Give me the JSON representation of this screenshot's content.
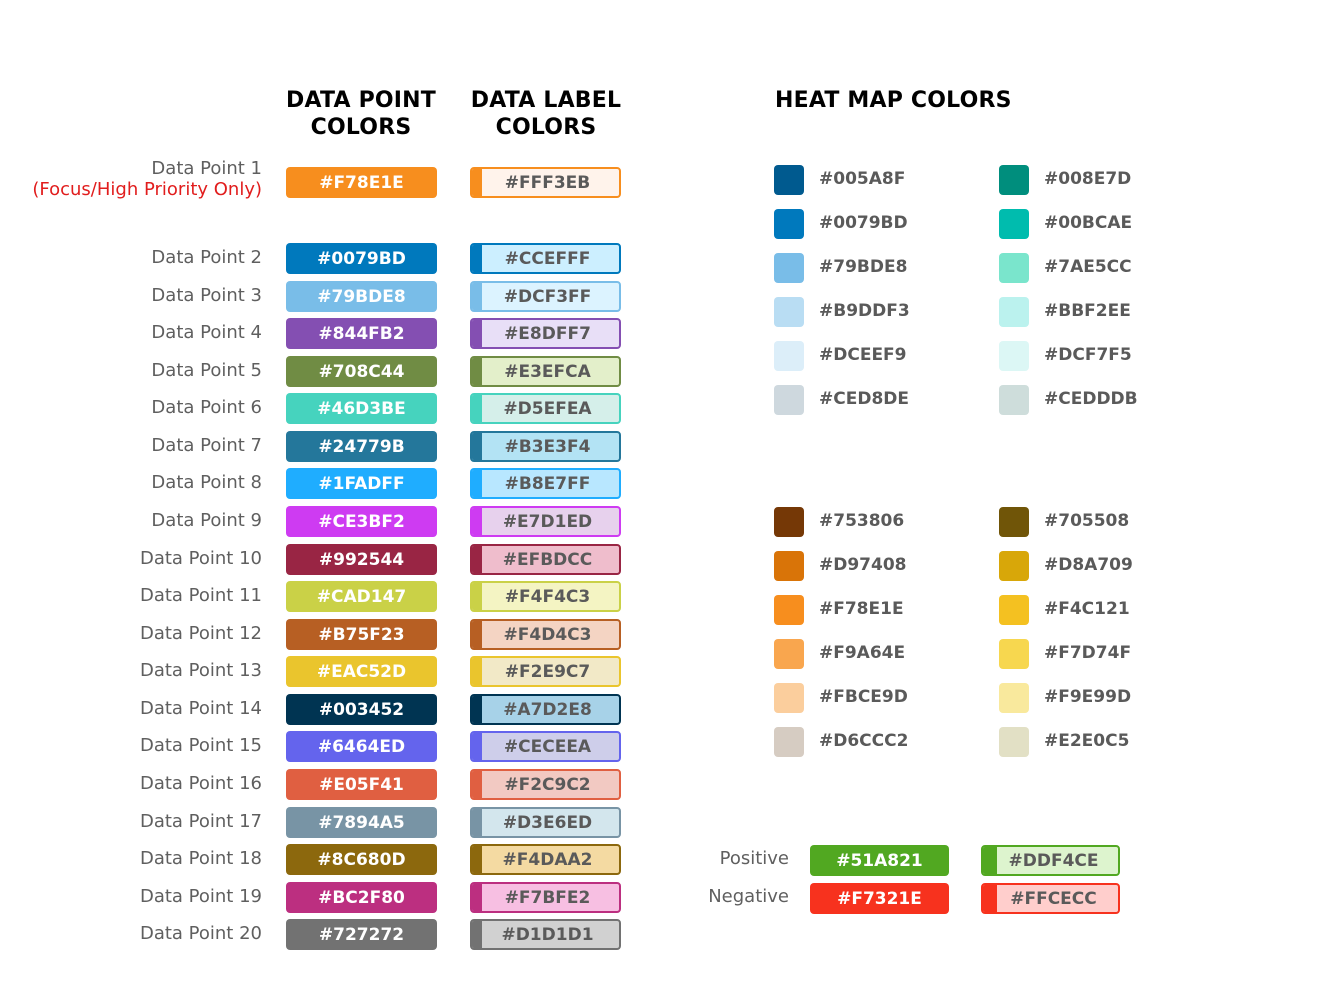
{
  "headings": {
    "data_point": [
      "DATA POINT",
      "COLORS"
    ],
    "data_label": [
      "DATA LABEL",
      "COLORS"
    ],
    "heat_map": "HEAT MAP COLORS"
  },
  "data_points": [
    {
      "label": "Data Point 1",
      "sublabel": "(Focus/High Priority Only)",
      "point": "#F78E1E",
      "label_color": "#FFF3EB"
    },
    {
      "label": "Data Point 2",
      "point": "#0079BD",
      "label_color": "#CCEFFF"
    },
    {
      "label": "Data Point 3",
      "point": "#79BDE8",
      "label_color": "#DCF3FF"
    },
    {
      "label": "Data Point 4",
      "point": "#844FB2",
      "label_color": "#E8DFF7"
    },
    {
      "label": "Data Point 5",
      "point": "#708C44",
      "label_color": "#E3EFCA"
    },
    {
      "label": "Data Point 6",
      "point": "#46D3BE",
      "label_color": "#D5EFEA"
    },
    {
      "label": "Data Point 7",
      "point": "#24779B",
      "label_color": "#B3E3F4"
    },
    {
      "label": "Data Point 8",
      "point": "#1FADFF",
      "label_color": "#B8E7FF"
    },
    {
      "label": "Data Point 9",
      "point": "#CE3BF2",
      "label_color": "#E7D1ED"
    },
    {
      "label": "Data Point 10",
      "point": "#992544",
      "label_color": "#EFBDCC"
    },
    {
      "label": "Data Point 11",
      "point": "#CAD147",
      "label_color": "#F4F4C3"
    },
    {
      "label": "Data Point 12",
      "point": "#B75F23",
      "label_color": "#F4D4C3"
    },
    {
      "label": "Data Point 13",
      "point": "#EAC52D",
      "label_color": "#F2E9C7"
    },
    {
      "label": "Data Point 14",
      "point": "#003452",
      "label_color": "#A7D2E8"
    },
    {
      "label": "Data Point 15",
      "point": "#6464ED",
      "label_color": "#CECEEA"
    },
    {
      "label": "Data Point 16",
      "point": "#E05F41",
      "label_color": "#F2C9C2"
    },
    {
      "label": "Data Point 17",
      "point": "#7894A5",
      "label_color": "#D3E6ED"
    },
    {
      "label": "Data Point 18",
      "point": "#8C680D",
      "label_color": "#F4DAA2"
    },
    {
      "label": "Data Point 19",
      "point": "#BC2F80",
      "label_color": "#F7BFE2"
    },
    {
      "label": "Data Point 20",
      "point": "#727272",
      "label_color": "#D1D1D1"
    }
  ],
  "heat_map": {
    "cool_left": [
      "#005A8F",
      "#0079BD",
      "#79BDE8",
      "#B9DDF3",
      "#DCEEF9",
      "#CED8DE"
    ],
    "cool_right": [
      "#008E7D",
      "#00BCAE",
      "#7AE5CC",
      "#BBF2EE",
      "#DCF7F5",
      "#CEDDDB"
    ],
    "warm_left": [
      "#753806",
      "#D97408",
      "#F78E1E",
      "#F9A64E",
      "#FBCE9D",
      "#D6CCC2"
    ],
    "warm_right": [
      "#705508",
      "#D8A709",
      "#F4C121",
      "#F7D74F",
      "#F9E99D",
      "#E2E0C5"
    ]
  },
  "sentiment": [
    {
      "label": "Positive",
      "solid": "#51A821",
      "light": "#DDF4CE"
    },
    {
      "label": "Negative",
      "solid": "#F7321E",
      "light": "#FFCECC"
    }
  ]
}
